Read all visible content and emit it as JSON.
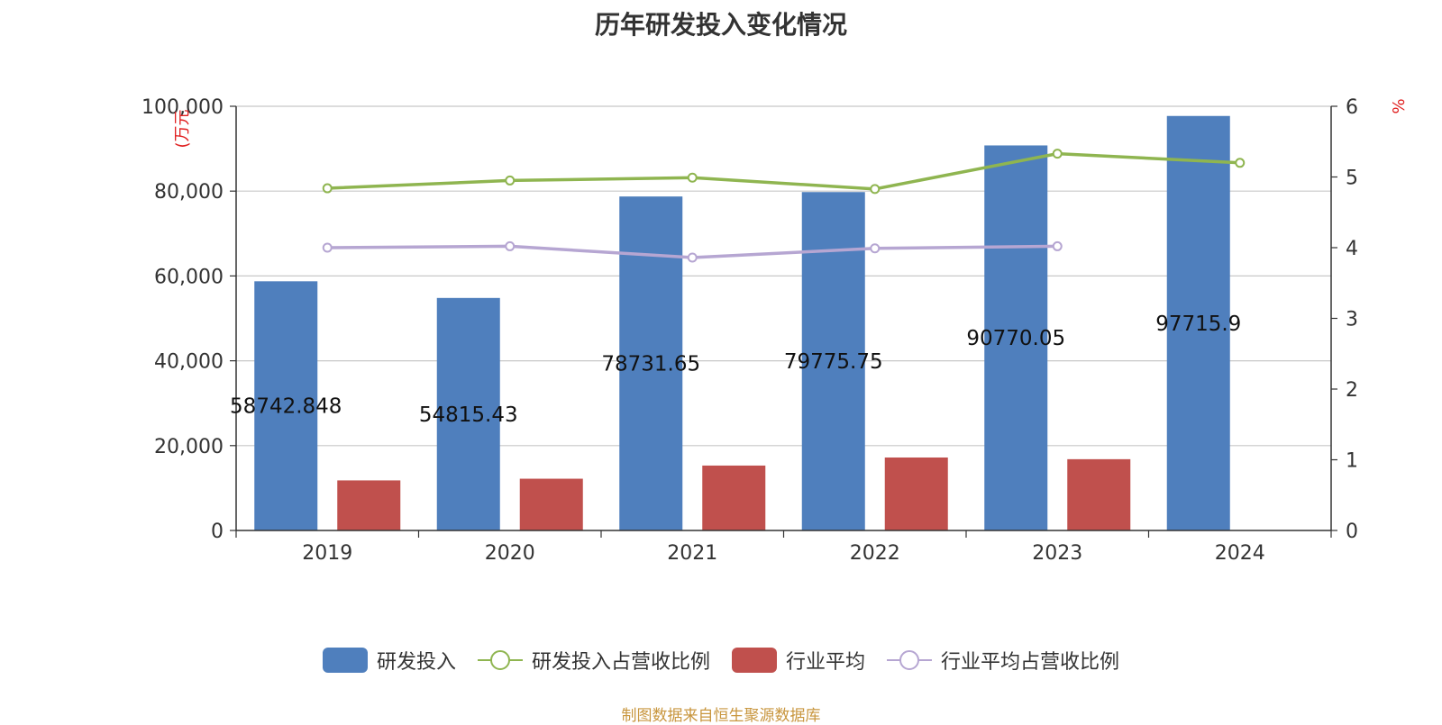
{
  "colors": {
    "bar_rd": "#4f7fbd",
    "bar_industry": "#c0504d",
    "line_rd_ratio": "#8fb550",
    "line_industry_ratio": "#b6a6d2",
    "axis_unit": "#e02020",
    "source": "#c8963e"
  },
  "chart_data": {
    "type": "bar",
    "title": "历年研发投入变化情况",
    "categories": [
      "2019",
      "2020",
      "2021",
      "2022",
      "2023",
      "2024"
    ],
    "y_left": {
      "label": "(万元",
      "ylim": [
        0,
        100000
      ],
      "ticks": [
        "0",
        "20,000",
        "40,000",
        "60,000",
        "80,000",
        "100,000"
      ]
    },
    "y_right": {
      "label": "%",
      "ylim": [
        0,
        6
      ],
      "ticks": [
        "0",
        "1",
        "2",
        "3",
        "4",
        "5",
        "6"
      ]
    },
    "grid": true,
    "legend_position": "bottom",
    "series": [
      {
        "name": "研发投入",
        "type": "bar",
        "axis": "left",
        "values": [
          58742.848,
          54815.43,
          78731.65,
          79775.75,
          90770.05,
          97715.9
        ],
        "labels": [
          "58742.848",
          "54815.43",
          "78731.65",
          "79775.75",
          "90770.05",
          "97715.9"
        ]
      },
      {
        "name": "研发投入占营收比例",
        "type": "line",
        "axis": "right",
        "values": [
          4.84,
          4.95,
          4.99,
          4.83,
          5.33,
          5.2
        ]
      },
      {
        "name": "行业平均",
        "type": "bar",
        "axis": "left",
        "values": [
          11800,
          12200,
          15300,
          17200,
          16800,
          null
        ]
      },
      {
        "name": "行业平均占营收比例",
        "type": "line",
        "axis": "right",
        "values": [
          4.0,
          4.02,
          3.86,
          3.99,
          4.02,
          null
        ]
      }
    ]
  },
  "source_text": "制图数据来自恒生聚源数据库"
}
